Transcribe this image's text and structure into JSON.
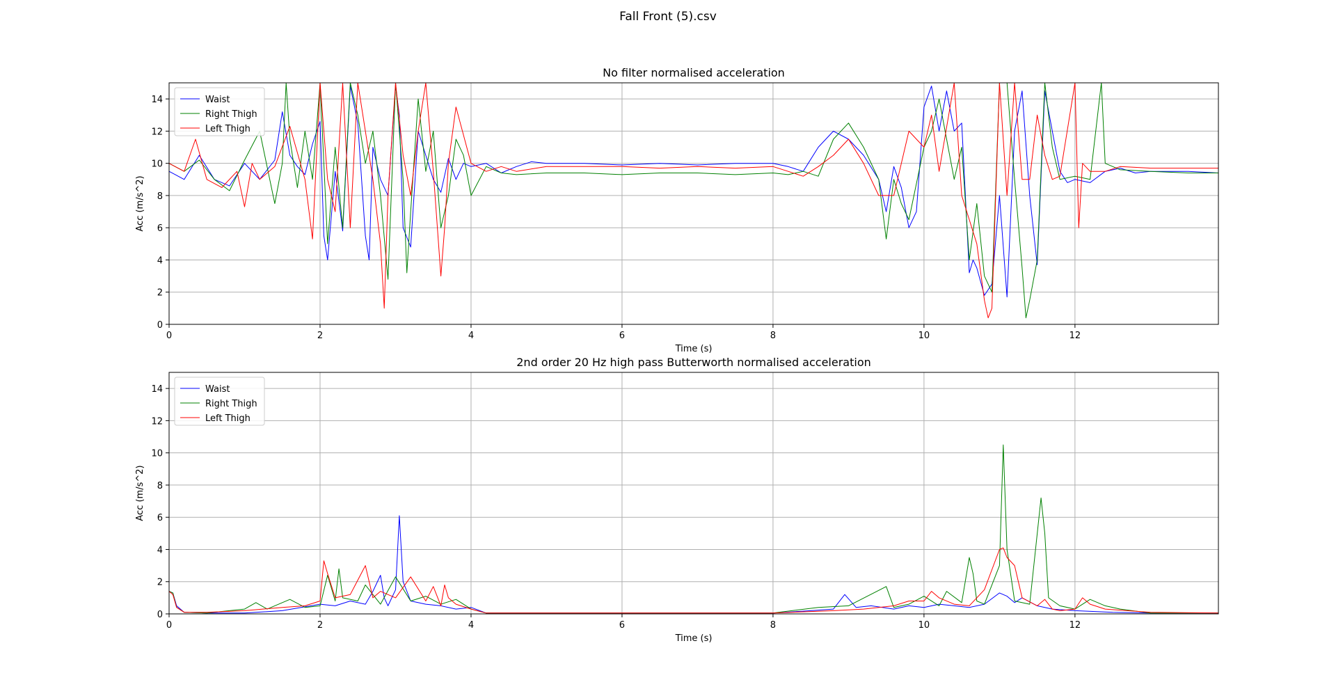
{
  "figure_title": "Fall Front (5).csv",
  "colors": {
    "waist": "#0000ff",
    "right_thigh": "#008000",
    "left_thigh": "#ff0000",
    "grid": "#b0b0b0"
  },
  "chart_data": [
    {
      "type": "line",
      "title": "No filter normalised acceleration",
      "xlabel": "Time (s)",
      "ylabel": "Acc (m/s^2)",
      "xlim": [
        0,
        13.9
      ],
      "ylim": [
        0,
        15
      ],
      "xticks": [
        0,
        2,
        4,
        6,
        8,
        10,
        12
      ],
      "yticks": [
        0,
        2,
        4,
        6,
        8,
        10,
        12,
        14
      ],
      "grid": true,
      "legend_position": "top-left",
      "series": [
        {
          "name": "Waist",
          "color": "#0000ff",
          "x": [
            0,
            0.2,
            0.4,
            0.6,
            0.8,
            1.0,
            1.2,
            1.4,
            1.5,
            1.6,
            1.7,
            1.8,
            1.9,
            2.0,
            2.05,
            2.1,
            2.2,
            2.3,
            2.4,
            2.5,
            2.6,
            2.65,
            2.7,
            2.8,
            2.9,
            3.0,
            3.05,
            3.1,
            3.2,
            3.3,
            3.4,
            3.5,
            3.6,
            3.7,
            3.8,
            3.9,
            4.0,
            4.2,
            4.4,
            4.6,
            4.8,
            5.0,
            5.5,
            6.0,
            6.5,
            7.0,
            7.5,
            8.0,
            8.2,
            8.4,
            8.6,
            8.8,
            9.0,
            9.2,
            9.4,
            9.5,
            9.6,
            9.7,
            9.8,
            9.9,
            10.0,
            10.1,
            10.2,
            10.3,
            10.4,
            10.5,
            10.6,
            10.65,
            10.7,
            10.8,
            10.9,
            11.0,
            11.1,
            11.2,
            11.3,
            11.4,
            11.5,
            11.6,
            11.7,
            11.8,
            11.9,
            12.0,
            12.2,
            12.4,
            12.6,
            12.8,
            13.0,
            13.5,
            13.9
          ],
          "values": [
            9.5,
            9.0,
            10.5,
            9.0,
            8.6,
            10.0,
            9.0,
            10.2,
            13.2,
            10.5,
            9.8,
            9.3,
            11.2,
            12.6,
            5.5,
            4.0,
            9.5,
            5.8,
            14.8,
            12.5,
            5.5,
            4.0,
            11.0,
            9.0,
            8.0,
            14.8,
            13.0,
            6.0,
            4.8,
            12.0,
            10.5,
            9.0,
            8.2,
            10.3,
            9.0,
            10.0,
            9.8,
            10.0,
            9.4,
            9.8,
            10.1,
            10.0,
            10.0,
            9.9,
            10.0,
            9.9,
            10.0,
            10.0,
            9.8,
            9.5,
            11.0,
            12.0,
            11.5,
            10.5,
            9.0,
            7.0,
            9.8,
            8.5,
            6.0,
            7.0,
            13.5,
            14.8,
            12.0,
            14.5,
            12.0,
            12.5,
            3.2,
            4.0,
            3.5,
            1.8,
            2.5,
            8.0,
            1.7,
            12.0,
            14.5,
            8.0,
            3.7,
            14.5,
            12.0,
            9.5,
            8.8,
            9.0,
            8.8,
            9.5,
            9.7,
            9.4,
            9.5,
            9.5,
            9.4
          ]
        },
        {
          "name": "Right Thigh",
          "color": "#008000",
          "x": [
            0,
            0.2,
            0.4,
            0.6,
            0.8,
            1.0,
            1.2,
            1.4,
            1.5,
            1.55,
            1.6,
            1.7,
            1.8,
            1.9,
            2.0,
            2.1,
            2.2,
            2.3,
            2.4,
            2.5,
            2.6,
            2.7,
            2.8,
            2.9,
            3.0,
            3.1,
            3.15,
            3.2,
            3.3,
            3.4,
            3.5,
            3.6,
            3.7,
            3.8,
            3.9,
            4.0,
            4.2,
            4.4,
            4.6,
            5.0,
            5.5,
            6.0,
            6.5,
            7.0,
            7.5,
            8.0,
            8.2,
            8.4,
            8.6,
            8.8,
            9.0,
            9.2,
            9.4,
            9.5,
            9.6,
            9.7,
            9.8,
            10.0,
            10.1,
            10.2,
            10.3,
            10.4,
            10.5,
            10.6,
            10.7,
            10.8,
            10.9,
            11.0,
            11.1,
            11.2,
            11.3,
            11.35,
            11.4,
            11.5,
            11.6,
            11.7,
            11.8,
            12.0,
            12.2,
            12.3,
            12.35,
            12.4,
            12.6,
            13.0,
            13.5,
            13.9
          ],
          "values": [
            10.0,
            9.5,
            10.2,
            9.0,
            8.3,
            10.2,
            12.0,
            7.5,
            10.0,
            15.0,
            11.5,
            8.5,
            12.0,
            9.0,
            15.0,
            5.0,
            11.0,
            6.0,
            15.0,
            13.0,
            10.0,
            12.0,
            8.0,
            2.8,
            15.0,
            9.0,
            3.2,
            7.0,
            14.0,
            9.5,
            12.0,
            6.0,
            8.0,
            11.5,
            10.5,
            8.0,
            9.8,
            9.4,
            9.3,
            9.4,
            9.4,
            9.3,
            9.4,
            9.4,
            9.3,
            9.4,
            9.3,
            9.5,
            9.2,
            11.5,
            12.5,
            11.0,
            9.0,
            5.3,
            9.0,
            7.5,
            6.5,
            11.0,
            12.0,
            14.0,
            11.5,
            9.0,
            11.0,
            4.0,
            7.5,
            3.0,
            2.0,
            15.0,
            15.0,
            9.0,
            3.5,
            0.4,
            1.5,
            4.0,
            15.0,
            11.0,
            9.0,
            9.2,
            9.0,
            13.0,
            15.0,
            10.0,
            9.6,
            9.5,
            9.4,
            9.4
          ]
        },
        {
          "name": "Left Thigh",
          "color": "#ff0000",
          "x": [
            0,
            0.2,
            0.35,
            0.5,
            0.7,
            0.9,
            1.0,
            1.1,
            1.2,
            1.4,
            1.6,
            1.8,
            1.9,
            2.0,
            2.1,
            2.2,
            2.3,
            2.4,
            2.5,
            2.6,
            2.7,
            2.8,
            2.85,
            2.9,
            3.0,
            3.1,
            3.2,
            3.3,
            3.4,
            3.5,
            3.6,
            3.65,
            3.7,
            3.8,
            4.0,
            4.2,
            4.4,
            4.6,
            5.0,
            5.5,
            6.0,
            6.5,
            7.0,
            7.5,
            8.0,
            8.2,
            8.4,
            8.6,
            8.8,
            9.0,
            9.2,
            9.4,
            9.6,
            9.8,
            10.0,
            10.1,
            10.2,
            10.4,
            10.5,
            10.6,
            10.7,
            10.8,
            10.85,
            10.9,
            11.0,
            11.1,
            11.2,
            11.3,
            11.4,
            11.5,
            11.6,
            11.7,
            11.8,
            12.0,
            12.05,
            12.1,
            12.2,
            12.4,
            12.6,
            13.0,
            13.5,
            13.9
          ],
          "values": [
            10.0,
            9.5,
            11.5,
            9.0,
            8.5,
            9.5,
            7.3,
            10.0,
            9.0,
            9.8,
            12.3,
            9.0,
            5.3,
            15.0,
            9.0,
            7.0,
            15.0,
            6.0,
            15.0,
            12.0,
            9.0,
            5.0,
            1.0,
            8.0,
            15.0,
            10.5,
            8.0,
            12.0,
            15.0,
            9.5,
            3.0,
            6.0,
            10.0,
            13.5,
            10.0,
            9.5,
            9.8,
            9.5,
            9.8,
            9.8,
            9.8,
            9.7,
            9.8,
            9.7,
            9.8,
            9.5,
            9.2,
            9.8,
            10.5,
            11.5,
            10.0,
            8.0,
            8.0,
            12.0,
            11.0,
            13.0,
            9.5,
            15.0,
            8.0,
            6.5,
            5.0,
            1.5,
            0.4,
            1.0,
            15.0,
            8.0,
            15.0,
            9.0,
            9.0,
            13.0,
            10.5,
            9.0,
            9.2,
            15.0,
            6.0,
            10.0,
            9.5,
            9.5,
            9.8,
            9.7,
            9.7,
            9.7
          ]
        }
      ]
    },
    {
      "type": "line",
      "title": "2nd order 20 Hz high pass Butterworth normalised acceleration",
      "xlabel": "Time (s)",
      "ylabel": "Acc (m/s^2)",
      "xlim": [
        0,
        13.9
      ],
      "ylim": [
        0,
        15
      ],
      "xticks": [
        0,
        2,
        4,
        6,
        8,
        10,
        12
      ],
      "yticks": [
        0,
        2,
        4,
        6,
        8,
        10,
        12,
        14
      ],
      "grid": true,
      "legend_position": "top-left",
      "series": [
        {
          "name": "Waist",
          "color": "#0000ff",
          "x": [
            0,
            0.05,
            0.1,
            0.2,
            0.5,
            1.0,
            1.5,
            2.0,
            2.2,
            2.4,
            2.6,
            2.7,
            2.8,
            2.85,
            2.9,
            3.0,
            3.05,
            3.1,
            3.2,
            3.4,
            3.6,
            3.8,
            4.0,
            4.2,
            5.0,
            6.0,
            7.0,
            8.0,
            8.5,
            8.8,
            8.95,
            9.1,
            9.3,
            9.6,
            9.8,
            10.0,
            10.2,
            10.4,
            10.6,
            10.8,
            11.0,
            11.1,
            11.2,
            11.3,
            11.5,
            11.7,
            12.0,
            12.5,
            13.0,
            13.9
          ],
          "values": [
            1.4,
            1.3,
            0.5,
            0.1,
            0.05,
            0.05,
            0.2,
            0.6,
            0.5,
            0.8,
            0.6,
            1.4,
            2.4,
            1.0,
            0.5,
            1.5,
            6.1,
            2.0,
            0.8,
            0.6,
            0.5,
            0.3,
            0.4,
            0.05,
            0.05,
            0.05,
            0.05,
            0.05,
            0.2,
            0.3,
            1.2,
            0.4,
            0.5,
            0.3,
            0.5,
            0.4,
            0.6,
            0.5,
            0.4,
            0.6,
            1.3,
            1.1,
            0.7,
            1.0,
            0.5,
            0.3,
            0.2,
            0.1,
            0.05,
            0.05
          ]
        },
        {
          "name": "Right Thigh",
          "color": "#008000",
          "x": [
            0,
            0.05,
            0.1,
            0.2,
            0.5,
            1.0,
            1.15,
            1.3,
            1.6,
            1.8,
            2.0,
            2.1,
            2.2,
            2.25,
            2.3,
            2.5,
            2.6,
            2.8,
            3.0,
            3.2,
            3.4,
            3.6,
            3.8,
            4.0,
            4.2,
            5.0,
            6.0,
            7.0,
            8.0,
            8.6,
            9.0,
            9.5,
            9.6,
            9.8,
            10.0,
            10.2,
            10.3,
            10.5,
            10.6,
            10.65,
            10.7,
            10.8,
            11.0,
            11.05,
            11.1,
            11.2,
            11.4,
            11.55,
            11.6,
            11.65,
            11.8,
            12.0,
            12.2,
            12.4,
            12.6,
            13.0,
            13.9
          ],
          "values": [
            1.4,
            1.3,
            0.4,
            0.1,
            0.05,
            0.3,
            0.7,
            0.3,
            0.9,
            0.4,
            0.5,
            2.4,
            0.8,
            2.8,
            1.0,
            0.8,
            1.8,
            0.6,
            2.3,
            0.8,
            1.1,
            0.6,
            0.9,
            0.3,
            0.05,
            0.05,
            0.05,
            0.05,
            0.05,
            0.4,
            0.5,
            1.7,
            0.4,
            0.6,
            1.1,
            0.5,
            1.4,
            0.7,
            3.5,
            2.5,
            0.8,
            0.6,
            3.0,
            10.5,
            4.0,
            0.8,
            0.6,
            7.2,
            5.0,
            1.0,
            0.5,
            0.3,
            0.9,
            0.5,
            0.3,
            0.05,
            0.05
          ]
        },
        {
          "name": "Left Thigh",
          "color": "#ff0000",
          "x": [
            0,
            0.05,
            0.1,
            0.2,
            0.5,
            1.0,
            1.5,
            1.8,
            2.0,
            2.05,
            2.1,
            2.2,
            2.4,
            2.6,
            2.65,
            2.7,
            2.8,
            3.0,
            3.2,
            3.4,
            3.5,
            3.6,
            3.65,
            3.7,
            3.8,
            4.0,
            4.2,
            5.0,
            6.0,
            7.0,
            8.0,
            8.8,
            9.2,
            9.6,
            9.8,
            10.0,
            10.1,
            10.2,
            10.4,
            10.6,
            10.8,
            11.0,
            11.05,
            11.1,
            11.2,
            11.3,
            11.5,
            11.6,
            11.7,
            11.8,
            12.0,
            12.1,
            12.2,
            12.4,
            13.0,
            13.9
          ],
          "values": [
            1.4,
            1.2,
            0.4,
            0.1,
            0.1,
            0.2,
            0.4,
            0.5,
            0.8,
            3.3,
            2.5,
            1.0,
            1.2,
            3.0,
            2.0,
            1.0,
            1.4,
            1.0,
            2.3,
            0.8,
            1.7,
            0.5,
            1.8,
            1.0,
            0.6,
            0.3,
            0.05,
            0.05,
            0.05,
            0.05,
            0.05,
            0.2,
            0.3,
            0.5,
            0.8,
            0.8,
            1.4,
            1.0,
            0.6,
            0.5,
            1.5,
            4.0,
            4.1,
            3.5,
            3.0,
            1.0,
            0.5,
            0.9,
            0.3,
            0.2,
            0.3,
            1.0,
            0.6,
            0.3,
            0.1,
            0.05
          ]
        }
      ]
    }
  ]
}
